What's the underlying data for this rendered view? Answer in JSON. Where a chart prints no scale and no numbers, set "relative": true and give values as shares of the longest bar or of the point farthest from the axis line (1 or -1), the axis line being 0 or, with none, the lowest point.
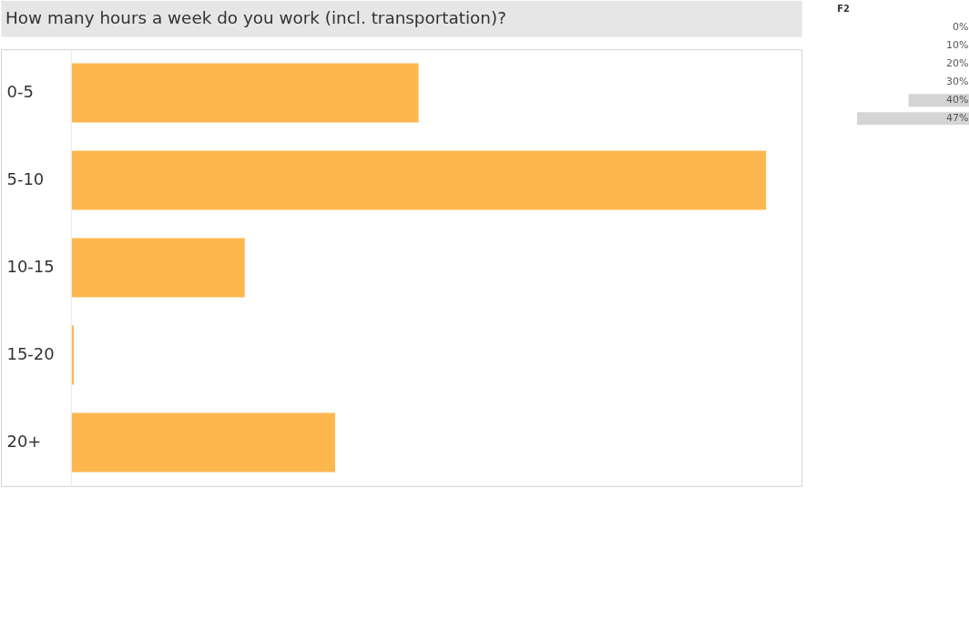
{
  "chart_data": [
    {
      "type": "bar",
      "orientation": "horizontal",
      "relative": true,
      "title": "How many hours a week do you work (incl. transportation)?",
      "categories": [
        "0-5",
        "5-10",
        "10-15",
        "15-20",
        "20+"
      ],
      "values": [
        0.5,
        1,
        0.25,
        0.004,
        0.38
      ],
      "color": "#feb74f"
    },
    {
      "type": "bar",
      "orientation": "horizontal",
      "relative": true,
      "title": "F2",
      "categories": [
        "0%",
        "10%",
        "20%",
        "30%",
        "40%",
        "47%"
      ],
      "values": [
        null,
        null,
        null,
        null,
        0.54,
        1
      ],
      "color": "#d4d4d4"
    }
  ]
}
